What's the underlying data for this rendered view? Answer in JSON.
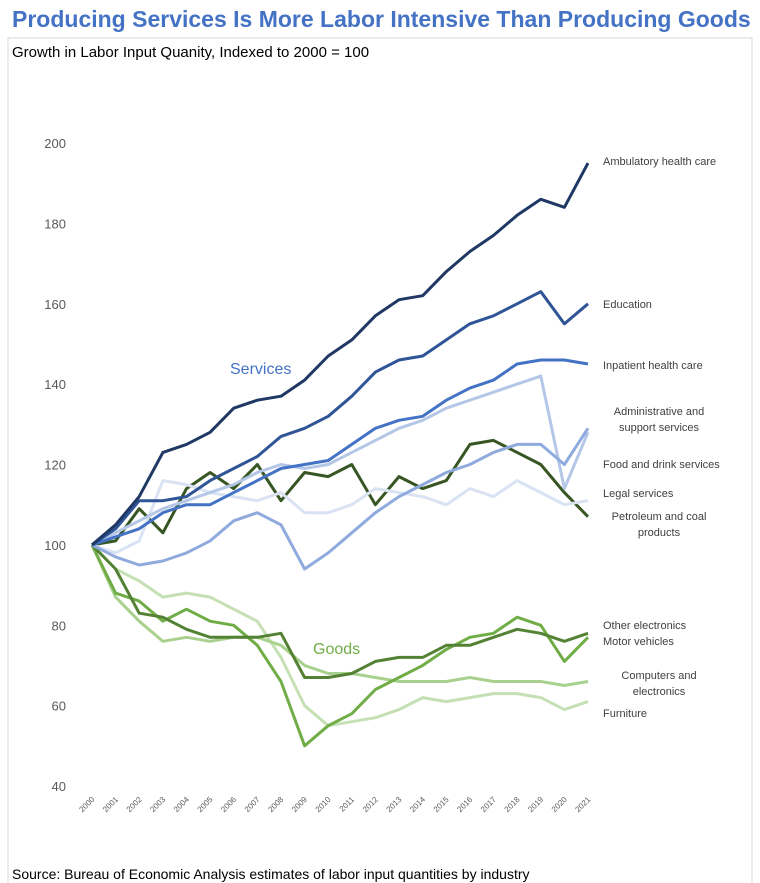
{
  "chart_data": {
    "type": "line",
    "title": "Producing Services Is More Labor Intensive Than Producing Goods",
    "subtitle": "Growth in Labor Input Quanity, Indexed to 2000 = 100",
    "source": "Source: Bureau of Economic Analysis estimates of labor input quantities by industry",
    "annotations": [
      {
        "text": "Services",
        "color": "#4472c4"
      },
      {
        "text": "Goods",
        "color": "#70ad47"
      }
    ],
    "categories": [
      "2000",
      "2001",
      "2002",
      "2003",
      "2004",
      "2005",
      "2006",
      "2007",
      "2008",
      "2009",
      "2010",
      "2011",
      "2012",
      "2013",
      "2014",
      "2015",
      "2016",
      "2017",
      "2018",
      "2019",
      "2020",
      "2021"
    ],
    "ylim": [
      40,
      200
    ],
    "yticks": [
      40,
      60,
      80,
      100,
      120,
      140,
      160,
      180,
      200
    ],
    "grid": false,
    "series": [
      {
        "name": "Ambulatory health care",
        "color": "#1f3864",
        "values": [
          100,
          105,
          112,
          123,
          125,
          128,
          134,
          136,
          137,
          141,
          147,
          151,
          157,
          161,
          162,
          168,
          173,
          177,
          182,
          186,
          184,
          195
        ]
      },
      {
        "name": "Education",
        "color": "#2f5597",
        "values": [
          100,
          104,
          111,
          111,
          112,
          116,
          119,
          122,
          127,
          129,
          132,
          137,
          143,
          146,
          147,
          151,
          155,
          157,
          160,
          163,
          155,
          160
        ]
      },
      {
        "name": "Inpatient health care",
        "color": "#4472c4",
        "values": [
          100,
          102,
          104,
          108,
          110,
          110,
          113,
          116,
          119,
          120,
          121,
          125,
          129,
          131,
          132,
          136,
          139,
          141,
          145,
          146,
          146,
          145
        ]
      },
      {
        "name": "Administrative and support services",
        "color": "#8faadc",
        "values": [
          100,
          97,
          95,
          96,
          98,
          101,
          106,
          108,
          105,
          94,
          98,
          103,
          108,
          112,
          115,
          118,
          120,
          123,
          125,
          125,
          120,
          129
        ]
      },
      {
        "name": "Food and drink services",
        "color": "#b4c7e7",
        "values": [
          100,
          103,
          106,
          109,
          111,
          113,
          115,
          118,
          120,
          119,
          120,
          123,
          126,
          129,
          131,
          134,
          136,
          138,
          140,
          142,
          114,
          128
        ]
      },
      {
        "name": "Legal services",
        "color": "#dae3f3",
        "values": [
          100,
          98,
          101,
          116,
          115,
          113,
          112,
          111,
          113,
          108,
          108,
          110,
          114,
          113,
          112,
          110,
          114,
          112,
          116,
          113,
          110,
          111
        ]
      },
      {
        "name": "Petroleum and coal products",
        "color": "#375623",
        "values": [
          100,
          101,
          109,
          103,
          114,
          118,
          114,
          120,
          111,
          118,
          117,
          120,
          110,
          117,
          114,
          116,
          125,
          126,
          123,
          120,
          113,
          107
        ]
      },
      {
        "name": "Other electronics",
        "color": "#548235",
        "values": [
          100,
          94,
          83,
          82,
          79,
          77,
          77,
          77,
          78,
          67,
          67,
          68,
          71,
          72,
          72,
          75,
          75,
          77,
          79,
          78,
          76,
          78
        ]
      },
      {
        "name": "Motor vehicles",
        "color": "#70ad47",
        "values": [
          100,
          88,
          86,
          81,
          84,
          81,
          80,
          75,
          66,
          50,
          55,
          58,
          64,
          67,
          70,
          74,
          77,
          78,
          82,
          80,
          71,
          77
        ]
      },
      {
        "name": "Computers and electronics",
        "color": "#a9d18e",
        "values": [
          100,
          87,
          81,
          76,
          77,
          76,
          77,
          77,
          75,
          70,
          68,
          68,
          67,
          66,
          66,
          66,
          67,
          66,
          66,
          66,
          65,
          66
        ]
      },
      {
        "name": "Furniture",
        "color": "#c5e0b4",
        "values": [
          100,
          94,
          91,
          87,
          88,
          87,
          84,
          81,
          72,
          60,
          55,
          56,
          57,
          59,
          62,
          61,
          62,
          63,
          63,
          62,
          59,
          61
        ]
      }
    ]
  }
}
